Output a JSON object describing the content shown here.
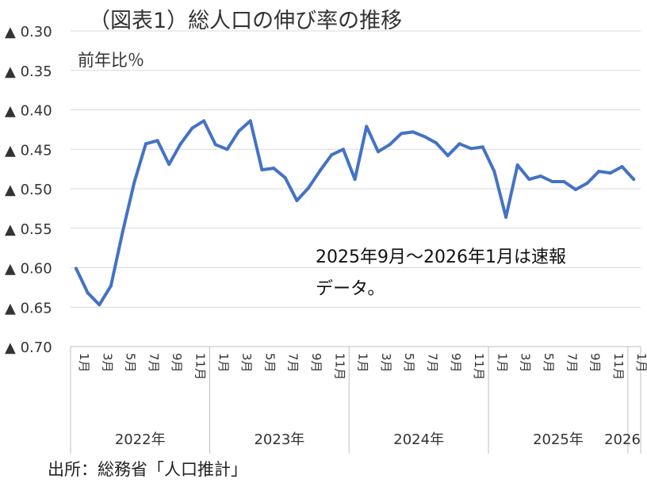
{
  "chart_data": {
    "type": "line",
    "title": "（図表1）総人口の伸び率の推移",
    "ylabel": "前年比％",
    "source": "出所：総務省「人口推計」",
    "annotation_line1": "2025年9月～2026年1月は速報",
    "annotation_line2": "データ。",
    "ylim": [
      0.3,
      0.7
    ],
    "y_inverted": true,
    "negative_prefix": "▲",
    "y_ticks": [
      "▲ 0.30",
      "▲ 0.35",
      "▲ 0.40",
      "▲ 0.45",
      "▲ 0.50",
      "▲ 0.55",
      "▲ 0.60",
      "▲ 0.65",
      "▲ 0.70"
    ],
    "x_month_labels": [
      "1月",
      "3月",
      "5月",
      "7月",
      "9月",
      "11月",
      "1月",
      "3月",
      "5月",
      "7月",
      "9月",
      "11月",
      "1月",
      "3月",
      "5月",
      "7月",
      "9月",
      "11月",
      "1月",
      "3月",
      "5月",
      "7月",
      "9月",
      "11月",
      "1月"
    ],
    "x_year_labels": [
      "2022年",
      "2023年",
      "2024年",
      "2025年",
      "2026"
    ],
    "grid": true,
    "legend": "none",
    "line_color": "#4472C4",
    "series": [
      {
        "x": [
          "2022-01",
          "2022-02",
          "2022-03",
          "2022-04",
          "2022-05",
          "2022-06",
          "2022-07",
          "2022-08",
          "2022-09",
          "2022-10",
          "2022-11",
          "2022-12",
          "2023-01",
          "2023-02",
          "2023-03",
          "2023-04",
          "2023-05",
          "2023-06",
          "2023-07",
          "2023-08",
          "2023-09",
          "2023-10",
          "2023-11",
          "2023-12",
          "2024-01",
          "2024-02",
          "2024-03",
          "2024-04",
          "2024-05",
          "2024-06",
          "2024-07",
          "2024-08",
          "2024-09",
          "2024-10",
          "2024-11",
          "2024-12",
          "2025-01",
          "2025-02",
          "2025-03",
          "2025-04",
          "2025-05",
          "2025-06",
          "2025-07",
          "2025-08",
          "2025-09",
          "2025-10",
          "2025-11",
          "2025-12",
          "2026-01"
        ],
        "values": [
          0.601,
          0.632,
          0.647,
          0.623,
          0.555,
          0.492,
          0.443,
          0.439,
          0.469,
          0.443,
          0.423,
          0.414,
          0.444,
          0.45,
          0.427,
          0.414,
          0.476,
          0.474,
          0.486,
          0.515,
          0.499,
          0.477,
          0.457,
          0.45,
          0.488,
          0.421,
          0.453,
          0.444,
          0.43,
          0.428,
          0.434,
          0.442,
          0.458,
          0.443,
          0.449,
          0.447,
          0.478,
          0.536,
          0.47,
          0.488,
          0.484,
          0.491,
          0.491,
          0.501,
          0.493,
          0.478,
          0.48,
          0.472,
          0.488
        ]
      }
    ]
  }
}
